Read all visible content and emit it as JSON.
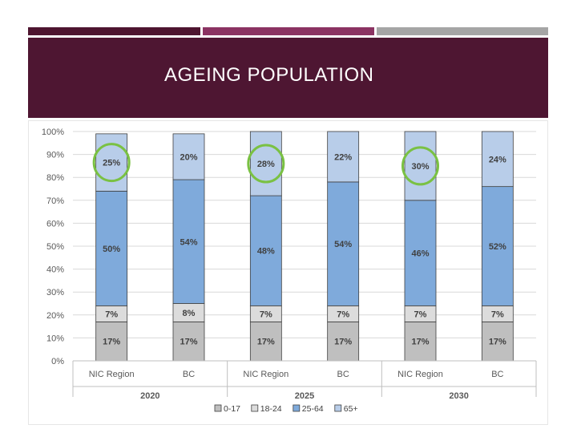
{
  "slide": {
    "title": "AGEING POPULATION"
  },
  "colors": {
    "banner": "#4e1632",
    "accent_dark": "#4e1530",
    "accent_mid": "#8b3362",
    "accent_grey": "#a5a5a5",
    "highlight_circle": "#7ac143"
  },
  "chart_data": {
    "type": "bar",
    "stacked": true,
    "percent": true,
    "categories": [
      {
        "label": "NIC Region",
        "group": "2020"
      },
      {
        "label": "BC",
        "group": "2020"
      },
      {
        "label": "NIC Region",
        "group": "2025"
      },
      {
        "label": "BC",
        "group": "2025"
      },
      {
        "label": "NIC Region",
        "group": "2030"
      },
      {
        "label": "BC",
        "group": "2030"
      }
    ],
    "groups": [
      "2020",
      "2025",
      "2030"
    ],
    "series": [
      {
        "name": "0-17",
        "color": "#bfbfbf",
        "values": [
          17,
          17,
          17,
          17,
          17,
          17
        ],
        "labels": [
          "17%",
          "17%",
          "17%",
          "17%",
          "17%",
          "17%"
        ]
      },
      {
        "name": "18-24",
        "color": "#dcdcdc",
        "values": [
          7,
          8,
          7,
          7,
          7,
          7
        ],
        "labels": [
          "7%",
          "8%",
          "7%",
          "7%",
          "7%",
          "7%"
        ]
      },
      {
        "name": "25-64",
        "color": "#7faadb",
        "values": [
          50,
          54,
          48,
          54,
          46,
          52
        ],
        "labels": [
          "50%",
          "54%",
          "48%",
          "54%",
          "46%",
          "52%"
        ]
      },
      {
        "name": "65+",
        "color": "#b8cde9",
        "values": [
          25,
          20,
          28,
          22,
          30,
          24
        ],
        "labels": [
          "25%",
          "20%",
          "28%",
          "22%",
          "30%",
          "24%"
        ]
      }
    ],
    "ylim": [
      0,
      100
    ],
    "yticks": [
      "0%",
      "10%",
      "20%",
      "30%",
      "40%",
      "50%",
      "60%",
      "70%",
      "80%",
      "90%",
      "100%"
    ],
    "grid": true,
    "legend": "bottom",
    "highlighted": [
      0,
      2,
      4
    ],
    "highlighted_series": "65+"
  }
}
